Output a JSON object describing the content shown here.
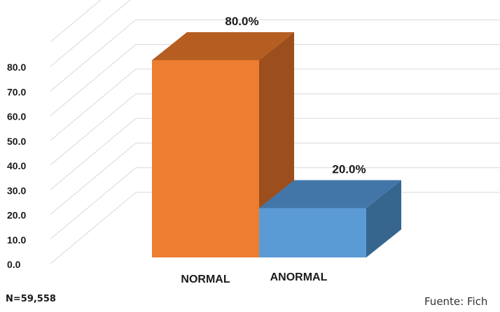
{
  "chart_data": {
    "type": "bar",
    "categories": [
      "NORMAL",
      "ANORMAL"
    ],
    "values": [
      80.0,
      20.0
    ],
    "data_labels": [
      "80.0%",
      "20.0%"
    ],
    "ylim": [
      0,
      80
    ],
    "yticks": [
      "0.0",
      "10.0",
      "20.0",
      "30.0",
      "40.0",
      "50.0",
      "60.0",
      "70.0",
      "80.0"
    ],
    "grid": true,
    "legend": "none",
    "colors": {
      "NORMAL": {
        "front": "#ed7d31",
        "top": "#b65e22",
        "side": "#9c4f1d"
      },
      "ANORMAL": {
        "front": "#5b9bd5",
        "top": "#4376a8",
        "side": "#36658e"
      }
    }
  },
  "notes": {
    "sample_size": "N=59,558",
    "source": "Fuente: Fich"
  }
}
